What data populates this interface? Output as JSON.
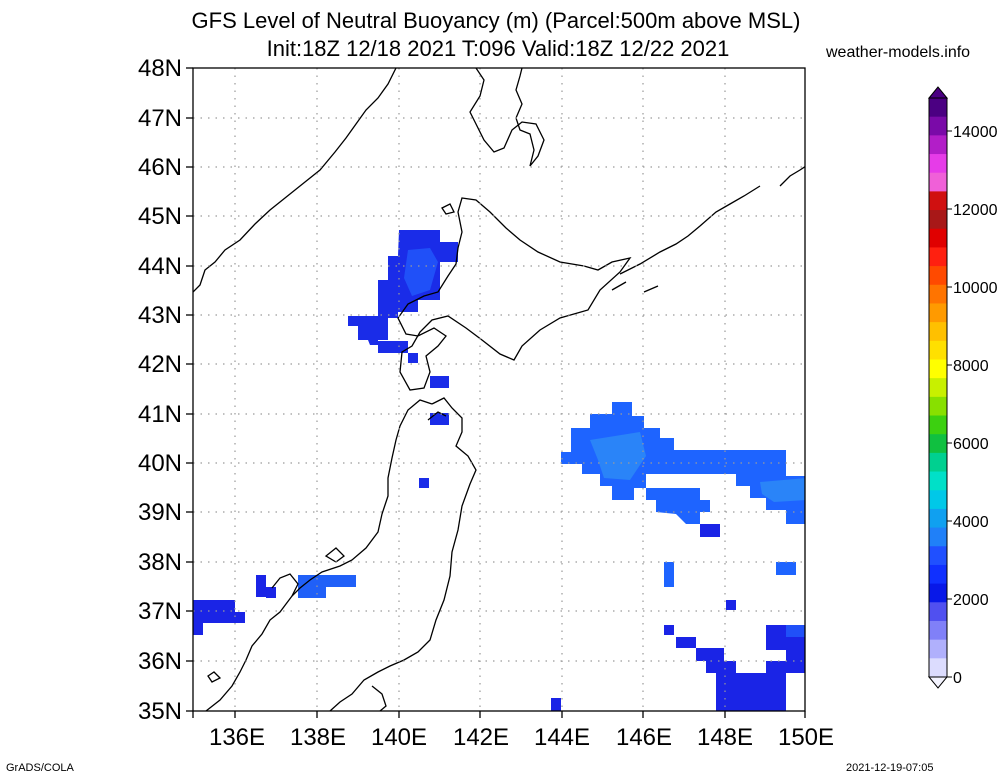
{
  "title_line1": "GFS Level of Neutral Buoyancy (m) (Parcel:500m above MSL)",
  "title_line2": "Init:18Z 12/18 2021 T:096 Valid:18Z 12/22 2021",
  "credit": "weather-models.info",
  "footer_left": "GrADS/COLA",
  "footer_right": "2021-12-19-07:05",
  "y_axis_labels": [
    "48N",
    "47N",
    "46N",
    "45N",
    "44N",
    "43N",
    "42N",
    "41N",
    "40N",
    "39N",
    "38N",
    "37N",
    "36N",
    "35N"
  ],
  "x_axis_labels": [
    "136E",
    "138E",
    "140E",
    "142E",
    "144E",
    "146E",
    "148E",
    "150E"
  ],
  "colorbar": {
    "labels": [
      "14000",
      "12000",
      "10000",
      "8000",
      "6000",
      "4000",
      "2000",
      "0"
    ],
    "colors": [
      "#4b0082",
      "#7a0aa8",
      "#b21ec8",
      "#e63ce8",
      "#f060d8",
      "#d01010",
      "#a81818",
      "#e00000",
      "#ff2010",
      "#ff4a00",
      "#ff7400",
      "#ff9a00",
      "#ffc000",
      "#ffe000",
      "#ffff00",
      "#c8f000",
      "#88e000",
      "#3cd010",
      "#10c040",
      "#00d090",
      "#00e0c8",
      "#00c8e8",
      "#10a0f0",
      "#2080f8",
      "#2050ff",
      "#1030ff",
      "#0818e8",
      "#5050f0",
      "#8080f8",
      "#b0b0fc",
      "#dcdcfe"
    ],
    "accent_blue": "#1e64ff",
    "deep_blue": "#1a24e6"
  }
}
